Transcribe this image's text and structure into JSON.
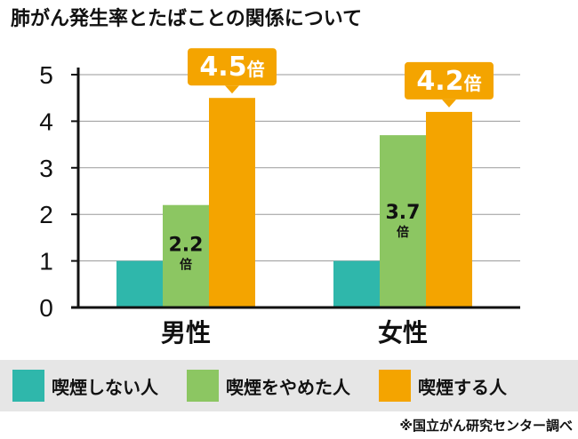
{
  "chart_data": {
    "type": "bar",
    "title": "肺がん発生率とたばことの関係について",
    "categories": [
      "男性",
      "女性"
    ],
    "series": [
      {
        "name": "喫煙しない人",
        "values": [
          1.0,
          1.0
        ],
        "color": "#2fb7ab"
      },
      {
        "name": "喫煙をやめた人",
        "values": [
          2.2,
          3.7
        ],
        "color": "#8cc662"
      },
      {
        "name": "喫煙する人",
        "values": [
          4.5,
          4.2
        ],
        "color": "#f4a400"
      }
    ],
    "data_labels": [
      {
        "category": "男性",
        "series": "喫煙をやめた人",
        "value": "2.2",
        "unit": "倍"
      },
      {
        "category": "女性",
        "series": "喫煙をやめた人",
        "value": "3.7",
        "unit": "倍"
      },
      {
        "category": "男性",
        "series": "喫煙する人",
        "value": "4.5",
        "unit": "倍"
      },
      {
        "category": "女性",
        "series": "喫煙する人",
        "value": "4.2",
        "unit": "倍"
      }
    ],
    "yticks": [
      0,
      1,
      2,
      3,
      4,
      5
    ],
    "ylim": [
      0,
      5
    ],
    "grid": true,
    "legend_position": "bottom"
  },
  "legend": {
    "items": [
      {
        "label": "喫煙しない人",
        "color": "#2fb7ab"
      },
      {
        "label": "喫煙をやめた人",
        "color": "#8cc662"
      },
      {
        "label": "喫煙する人",
        "color": "#f4a400"
      }
    ]
  },
  "source_note": "※国立がん研究センター調べ"
}
